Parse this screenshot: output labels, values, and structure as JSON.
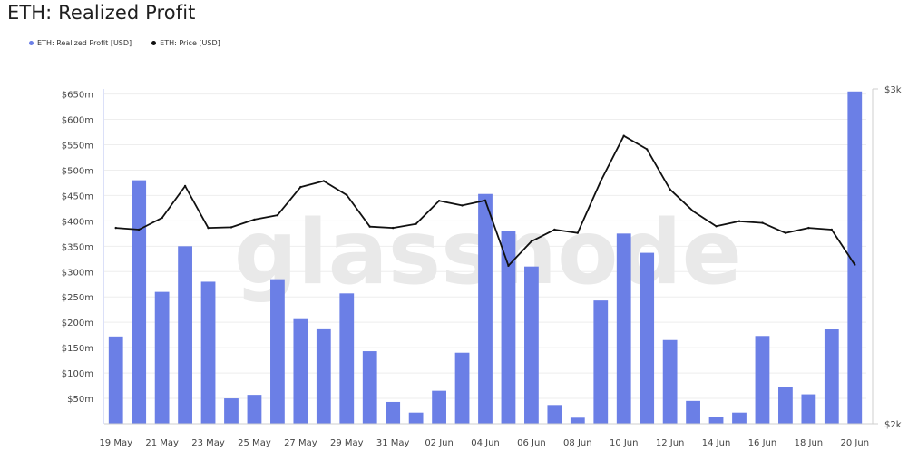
{
  "header": {
    "title": "ETH: Realized Profit"
  },
  "watermark": "glassnode",
  "colors": {
    "bars": "#6b7fe6",
    "price_line": "#111111",
    "grid": "#eeeeee"
  },
  "chart_data": {
    "type": "bar",
    "title": "ETH: Realized Profit",
    "legend_position": "top-left",
    "grid": true,
    "x": [
      "19 May",
      "20 May",
      "21 May",
      "22 May",
      "23 May",
      "24 May",
      "25 May",
      "26 May",
      "27 May",
      "28 May",
      "29 May",
      "30 May",
      "31 May",
      "01 Jun",
      "02 Jun",
      "03 Jun",
      "04 Jun",
      "05 Jun",
      "06 Jun",
      "07 Jun",
      "08 Jun",
      "09 Jun",
      "10 Jun",
      "11 Jun",
      "12 Jun",
      "13 Jun",
      "14 Jun",
      "15 Jun",
      "16 Jun",
      "17 Jun",
      "18 Jun",
      "19 Jun",
      "20 Jun"
    ],
    "x_tick_labels": [
      "19 May",
      "21 May",
      "23 May",
      "25 May",
      "27 May",
      "29 May",
      "31 May",
      "02 Jun",
      "04 Jun",
      "06 Jun",
      "08 Jun",
      "10 Jun",
      "12 Jun",
      "14 Jun",
      "16 Jun",
      "18 Jun",
      "20 Jun"
    ],
    "y_left": {
      "ticks": [
        "$50m",
        "$100m",
        "$150m",
        "$200m",
        "$250m",
        "$300m",
        "$350m",
        "$400m",
        "$450m",
        "$500m",
        "$550m",
        "$600m",
        "$650m"
      ],
      "ylim": [
        0,
        660
      ]
    },
    "y_right": {
      "ticks": [
        "$2k",
        "$3k"
      ],
      "ylim": [
        2000,
        3000
      ]
    },
    "series": [
      {
        "name": "ETH: Realized Profit [USD]",
        "type": "bar",
        "axis": "left",
        "values": [
          172,
          480,
          260,
          350,
          280,
          50,
          57,
          285,
          208,
          188,
          257,
          143,
          43,
          22,
          65,
          140,
          453,
          380,
          310,
          37,
          12,
          243,
          375,
          337,
          165,
          45,
          13,
          22,
          173,
          73,
          58,
          186,
          655
        ]
      },
      {
        "name": "ETH: Price [USD]",
        "type": "line",
        "axis": "right",
        "values": [
          2585,
          2580,
          2615,
          2710,
          2585,
          2587,
          2610,
          2623,
          2707,
          2725,
          2683,
          2589,
          2585,
          2597,
          2666,
          2652,
          2667,
          2472,
          2545,
          2580,
          2570,
          2725,
          2860,
          2820,
          2700,
          2635,
          2590,
          2605,
          2600,
          2570,
          2585,
          2580,
          2475
        ]
      }
    ]
  }
}
